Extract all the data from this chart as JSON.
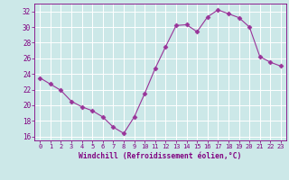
{
  "x": [
    0,
    1,
    2,
    3,
    4,
    5,
    6,
    7,
    8,
    9,
    10,
    11,
    12,
    13,
    14,
    15,
    16,
    17,
    18,
    19,
    20,
    21,
    22,
    23
  ],
  "y": [
    23.5,
    22.7,
    21.9,
    20.5,
    19.8,
    19.3,
    18.5,
    17.2,
    16.4,
    18.5,
    21.5,
    24.7,
    27.5,
    30.2,
    30.3,
    29.4,
    31.3,
    32.2,
    31.7,
    31.2,
    30.0,
    26.2,
    25.5,
    25.0
  ],
  "line_color": "#993399",
  "marker": "D",
  "marker_size": 2.5,
  "bg_color": "#cce8e8",
  "grid_color": "#ffffff",
  "xlabel": "Windchill (Refroidissement éolien,°C)",
  "xlabel_color": "#800080",
  "tick_color": "#800080",
  "ylim": [
    15.5,
    33
  ],
  "xlim": [
    -0.5,
    23.5
  ],
  "yticks": [
    16,
    18,
    20,
    22,
    24,
    26,
    28,
    30,
    32
  ],
  "xticks": [
    0,
    1,
    2,
    3,
    4,
    5,
    6,
    7,
    8,
    9,
    10,
    11,
    12,
    13,
    14,
    15,
    16,
    17,
    18,
    19,
    20,
    21,
    22,
    23
  ],
  "xtick_labels": [
    "0",
    "1",
    "2",
    "3",
    "4",
    "5",
    "6",
    "7",
    "8",
    "9",
    "10",
    "11",
    "12",
    "13",
    "14",
    "15",
    "16",
    "17",
    "18",
    "19",
    "20",
    "21",
    "22",
    "23"
  ]
}
